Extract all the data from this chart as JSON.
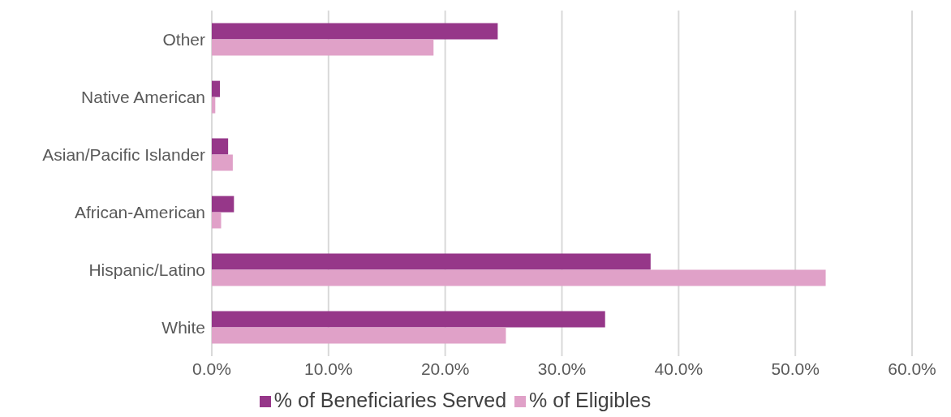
{
  "chart_data": {
    "type": "bar",
    "orientation": "horizontal",
    "categories": [
      "Other",
      "Native American",
      "Asian/Pacific Islander",
      "African-American",
      "Hispanic/Latino",
      "White"
    ],
    "series": [
      {
        "name": "% of Beneficiaries Served",
        "color": "#963789",
        "values": [
          24.5,
          0.7,
          1.4,
          1.9,
          37.6,
          33.7
        ]
      },
      {
        "name": "% of Eligibles",
        "color": "#e0a1c8",
        "values": [
          19.0,
          0.3,
          1.8,
          0.8,
          52.6,
          25.2
        ]
      }
    ],
    "xlim": [
      0,
      60
    ],
    "xticks": [
      {
        "value": 0,
        "label": "0.0%"
      },
      {
        "value": 10,
        "label": "10.0%"
      },
      {
        "value": 20,
        "label": "20.0%"
      },
      {
        "value": 30,
        "label": "30.0%"
      },
      {
        "value": 40,
        "label": "40.0%"
      },
      {
        "value": 50,
        "label": "50.0%"
      },
      {
        "value": 60,
        "label": "60.0%"
      }
    ],
    "grid": "x",
    "legend": "bottom"
  }
}
